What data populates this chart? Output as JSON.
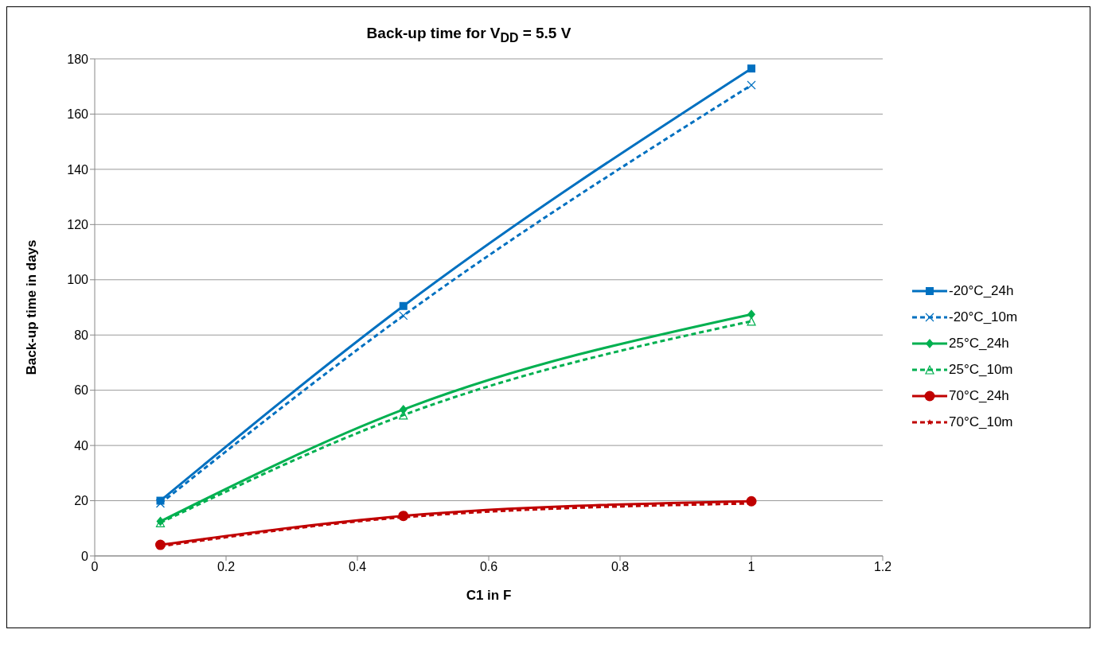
{
  "chart_data": {
    "type": "line",
    "title": "Back-up time for  V$_{DD}$ = 5.5 V",
    "xlabel": "C1 in F",
    "ylabel": "Back-up time in days",
    "x": [
      0.1,
      0.47,
      1
    ],
    "xlim": [
      0,
      1.2
    ],
    "xticks": [
      0,
      0.2,
      0.4,
      0.6,
      0.8,
      1,
      1.2
    ],
    "ylim": [
      0,
      180
    ],
    "yticks": [
      0,
      20,
      40,
      60,
      80,
      100,
      120,
      140,
      160,
      180
    ],
    "grid": "y",
    "legend": "right",
    "series": [
      {
        "name": "-20°C_24h",
        "color": "#0070c0",
        "values": [
          20,
          90.5,
          176.5
        ],
        "marker": "square",
        "line_style": "solid"
      },
      {
        "name": "-20°C_10m",
        "color": "#0070c0",
        "values": [
          19,
          87,
          170.5
        ],
        "marker": "cross",
        "line_style": "dashed"
      },
      {
        "name": "25°C_24h",
        "color": "#00b050",
        "values": [
          12.5,
          53,
          87.5
        ],
        "marker": "diamond",
        "line_style": "solid"
      },
      {
        "name": "25°C_10m",
        "color": "#00b050",
        "values": [
          12,
          51,
          85
        ],
        "marker": "triangle",
        "line_style": "dashed"
      },
      {
        "name": "70°C_24h",
        "color": "#c00000",
        "values": [
          4,
          14.5,
          19.8
        ],
        "marker": "circle",
        "line_style": "solid"
      },
      {
        "name": "70°C_10m",
        "color": "#c00000",
        "values": [
          3.5,
          14,
          19
        ],
        "marker": "star",
        "line_style": "dashed"
      }
    ]
  }
}
